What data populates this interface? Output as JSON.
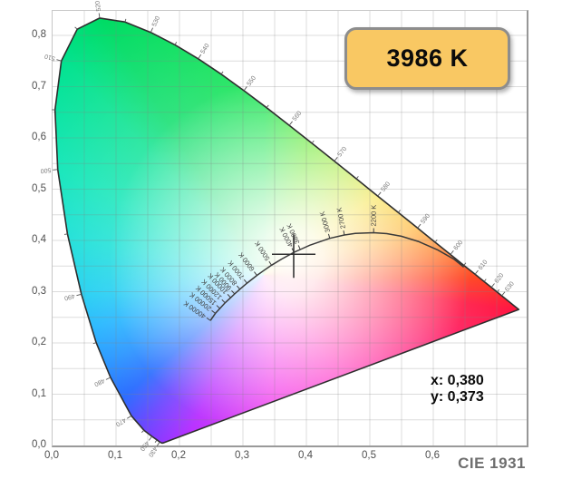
{
  "header": {
    "cct_badge": "3986 K"
  },
  "readout": {
    "x_text": "x: 0,380",
    "y_text": "y: 0,373"
  },
  "footer": {
    "diagram_label": "CIE 1931"
  },
  "colors": {
    "badge_fill": "#f9c863",
    "badge_border": "#8d8d8d",
    "badge_text": "#0b0b0b",
    "axis_text": "#4f4f4f",
    "grid_line": "#dadada",
    "locus_stroke": "#2e2e2e",
    "planckian_stroke": "#3a3a3a",
    "crosshair": "#333333",
    "wavelength_label": "#7a7a7a",
    "temp_label": "#3f3f3f",
    "cie_label_text": "#6e6e6e"
  },
  "chart_data": {
    "type": "scatter",
    "subtype": "cie-1931-chromaticity-diagram",
    "title": "CIE 1931",
    "badge_value": "3986 K",
    "measured_point": {
      "x": 0.38,
      "y": 0.373,
      "cct_kelvin": 3986,
      "label_x": "x: 0,380",
      "label_y": "y: 0,373"
    },
    "x_axis": {
      "label": "x",
      "range": [
        0,
        0.747
      ],
      "grid_step": 0.05,
      "tick_values": [
        0,
        0.1,
        0.2,
        0.3,
        0.4,
        0.5,
        0.6
      ],
      "tick_labels": [
        "0,0",
        "0,1",
        "0,2",
        "0,3",
        "0,4",
        "0,5",
        "0,6"
      ]
    },
    "y_axis": {
      "label": "y",
      "range": [
        0,
        0.848
      ],
      "grid_step": 0.05,
      "tick_values": [
        0,
        0.1,
        0.2,
        0.3,
        0.4,
        0.5,
        0.6,
        0.7,
        0.8
      ],
      "tick_labels": [
        "0,0",
        "0,1",
        "0,2",
        "0,3",
        "0,4",
        "0,5",
        "0,6",
        "0,7",
        "0,8"
      ]
    },
    "grid": true,
    "legend": false,
    "spectral_locus": {
      "labeled_wavelengths_nm": [
        430,
        450,
        470,
        480,
        490,
        500,
        510,
        520,
        530,
        540,
        550,
        560,
        570,
        580,
        590,
        600,
        610,
        620,
        630
      ],
      "points_wl_x_y": [
        [
          380,
          0.1741,
          0.005
        ],
        [
          400,
          0.1733,
          0.0048
        ],
        [
          410,
          0.1726,
          0.0048
        ],
        [
          420,
          0.1714,
          0.0051
        ],
        [
          430,
          0.1689,
          0.0069
        ],
        [
          440,
          0.1644,
          0.0109
        ],
        [
          450,
          0.1566,
          0.0177
        ],
        [
          460,
          0.144,
          0.0297
        ],
        [
          470,
          0.1241,
          0.0578
        ],
        [
          480,
          0.0913,
          0.1327
        ],
        [
          485,
          0.0687,
          0.2007
        ],
        [
          490,
          0.0454,
          0.295
        ],
        [
          495,
          0.0235,
          0.4127
        ],
        [
          500,
          0.0082,
          0.5384
        ],
        [
          505,
          0.0039,
          0.6548
        ],
        [
          510,
          0.0139,
          0.7502
        ],
        [
          515,
          0.0389,
          0.812
        ],
        [
          520,
          0.0743,
          0.8338
        ],
        [
          525,
          0.1142,
          0.8262
        ],
        [
          530,
          0.1547,
          0.8059
        ],
        [
          535,
          0.1929,
          0.7816
        ],
        [
          540,
          0.2296,
          0.7543
        ],
        [
          545,
          0.2658,
          0.7243
        ],
        [
          550,
          0.3016,
          0.6923
        ],
        [
          555,
          0.3373,
          0.6589
        ],
        [
          560,
          0.3731,
          0.6245
        ],
        [
          565,
          0.4087,
          0.5896
        ],
        [
          570,
          0.4441,
          0.5547
        ],
        [
          575,
          0.4788,
          0.5202
        ],
        [
          580,
          0.5125,
          0.4866
        ],
        [
          585,
          0.5448,
          0.4544
        ],
        [
          590,
          0.5752,
          0.4242
        ],
        [
          595,
          0.6029,
          0.3965
        ],
        [
          600,
          0.627,
          0.3725
        ],
        [
          605,
          0.6482,
          0.3514
        ],
        [
          610,
          0.6658,
          0.334
        ],
        [
          615,
          0.6801,
          0.3197
        ],
        [
          620,
          0.6915,
          0.3083
        ],
        [
          625,
          0.7006,
          0.2993
        ],
        [
          630,
          0.7079,
          0.292
        ],
        [
          640,
          0.719,
          0.2809
        ],
        [
          650,
          0.726,
          0.274
        ],
        [
          680,
          0.7334,
          0.2666
        ],
        [
          700,
          0.7347,
          0.2653
        ]
      ]
    },
    "planckian_locus": {
      "tick_labels": [
        "40000 K",
        "20000 K",
        "15000 K",
        "12000 K",
        "10000 K",
        "9000 K",
        "8000 K",
        "7000 K",
        "6000 K",
        "5000 K",
        "4000 K",
        "3800 K",
        "3000 K",
        "2700 K",
        "2200 K"
      ],
      "tick_kelvin": [
        40000,
        20000,
        15000,
        12000,
        10000,
        9000,
        8000,
        7000,
        6000,
        5000,
        4000,
        3800,
        3000,
        2700,
        2200
      ],
      "points_T_x_y": [
        [
          40000,
          0.2487,
          0.2438
        ],
        [
          20000,
          0.2565,
          0.2577
        ],
        [
          15000,
          0.2637,
          0.2673
        ],
        [
          12000,
          0.2719,
          0.2782
        ],
        [
          10000,
          0.2807,
          0.2884
        ],
        [
          9000,
          0.2869,
          0.2956
        ],
        [
          8000,
          0.2952,
          0.3048
        ],
        [
          7000,
          0.3064,
          0.3166
        ],
        [
          6000,
          0.3221,
          0.3318
        ],
        [
          5500,
          0.3325,
          0.3411
        ],
        [
          5000,
          0.3451,
          0.3516
        ],
        [
          4500,
          0.3608,
          0.3636
        ],
        [
          4000,
          0.3805,
          0.3768
        ],
        [
          3800,
          0.3904,
          0.3823
        ],
        [
          3500,
          0.4053,
          0.3907
        ],
        [
          3000,
          0.4369,
          0.4041
        ],
        [
          2700,
          0.4599,
          0.4106
        ],
        [
          2500,
          0.477,
          0.4137
        ],
        [
          2200,
          0.506,
          0.415
        ],
        [
          2000,
          0.5267,
          0.4133
        ],
        [
          1800,
          0.5497,
          0.4082
        ],
        [
          1600,
          0.5763,
          0.3981
        ],
        [
          1400,
          0.6073,
          0.3812
        ],
        [
          1250,
          0.633,
          0.363
        ],
        [
          1150,
          0.648,
          0.348
        ]
      ]
    }
  }
}
